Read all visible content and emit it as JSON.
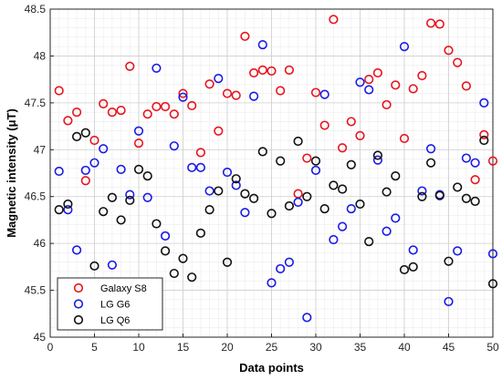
{
  "chart_data": {
    "type": "scatter",
    "xlabel": "Data points",
    "ylabel": "Magnetic intensity (μT)",
    "xlim": [
      0,
      50
    ],
    "ylim": [
      45,
      48.5
    ],
    "xticks": [
      0,
      5,
      10,
      15,
      20,
      25,
      30,
      35,
      40,
      45,
      50
    ],
    "yticks": [
      45,
      45.5,
      46,
      46.5,
      47,
      47.5,
      48,
      48.5
    ],
    "ytick_labels": [
      "45",
      "45.5",
      "46",
      "46.5",
      "47",
      "47.5",
      "48",
      "48.5"
    ],
    "grid": true,
    "minor_grid": true,
    "legend_position": "bottom-left",
    "x": [
      1,
      2,
      3,
      4,
      5,
      6,
      7,
      8,
      9,
      10,
      11,
      12,
      13,
      14,
      15,
      16,
      17,
      18,
      19,
      20,
      21,
      22,
      23,
      24,
      25,
      26,
      27,
      28,
      29,
      30,
      31,
      32,
      33,
      34,
      35,
      36,
      37,
      38,
      39,
      40,
      41,
      42,
      43,
      44,
      45,
      46,
      47,
      48,
      49,
      50
    ],
    "series": [
      {
        "name": "Galaxy S8",
        "color": "#e8141c",
        "values": [
          47.63,
          47.31,
          47.4,
          46.67,
          47.1,
          47.49,
          47.4,
          47.42,
          47.89,
          47.07,
          47.38,
          47.46,
          47.46,
          47.38,
          47.6,
          47.47,
          46.97,
          47.7,
          47.2,
          47.6,
          47.58,
          48.21,
          47.82,
          47.85,
          47.84,
          47.63,
          47.85,
          46.53,
          46.91,
          47.61,
          47.26,
          48.39,
          47.02,
          47.3,
          47.15,
          47.75,
          47.82,
          47.48,
          47.69,
          47.12,
          47.65,
          47.79,
          48.35,
          48.34,
          48.06,
          47.93,
          47.68,
          46.68,
          47.16,
          46.88
        ]
      },
      {
        "name": "LG G6",
        "color": "#1a1ae6",
        "values": [
          46.77,
          46.36,
          45.93,
          46.78,
          46.86,
          47.01,
          45.77,
          46.79,
          46.52,
          47.2,
          46.49,
          47.87,
          46.08,
          47.04,
          47.56,
          46.81,
          46.81,
          46.56,
          47.76,
          46.76,
          46.62,
          46.33,
          47.57,
          48.12,
          45.58,
          45.73,
          45.8,
          46.44,
          45.21,
          46.78,
          47.59,
          46.04,
          46.18,
          46.37,
          47.72,
          47.64,
          46.89,
          46.13,
          46.27,
          48.1,
          45.93,
          46.56,
          47.01,
          46.52,
          45.38,
          45.92,
          46.91,
          46.86,
          47.5,
          45.89
        ]
      },
      {
        "name": "LG Q6",
        "color": "#111111",
        "values": [
          46.36,
          46.42,
          47.14,
          47.18,
          45.76,
          46.34,
          46.49,
          46.25,
          46.46,
          46.79,
          46.72,
          46.21,
          45.92,
          45.68,
          45.84,
          45.64,
          46.11,
          46.36,
          46.56,
          45.8,
          46.69,
          46.53,
          46.48,
          46.98,
          46.32,
          46.88,
          46.4,
          47.09,
          46.5,
          46.88,
          46.37,
          46.62,
          46.58,
          46.84,
          46.42,
          46.02,
          46.94,
          46.55,
          46.72,
          45.72,
          45.75,
          46.5,
          46.86,
          46.51,
          45.81,
          46.6,
          46.48,
          46.45,
          47.1,
          45.57
        ]
      }
    ]
  }
}
